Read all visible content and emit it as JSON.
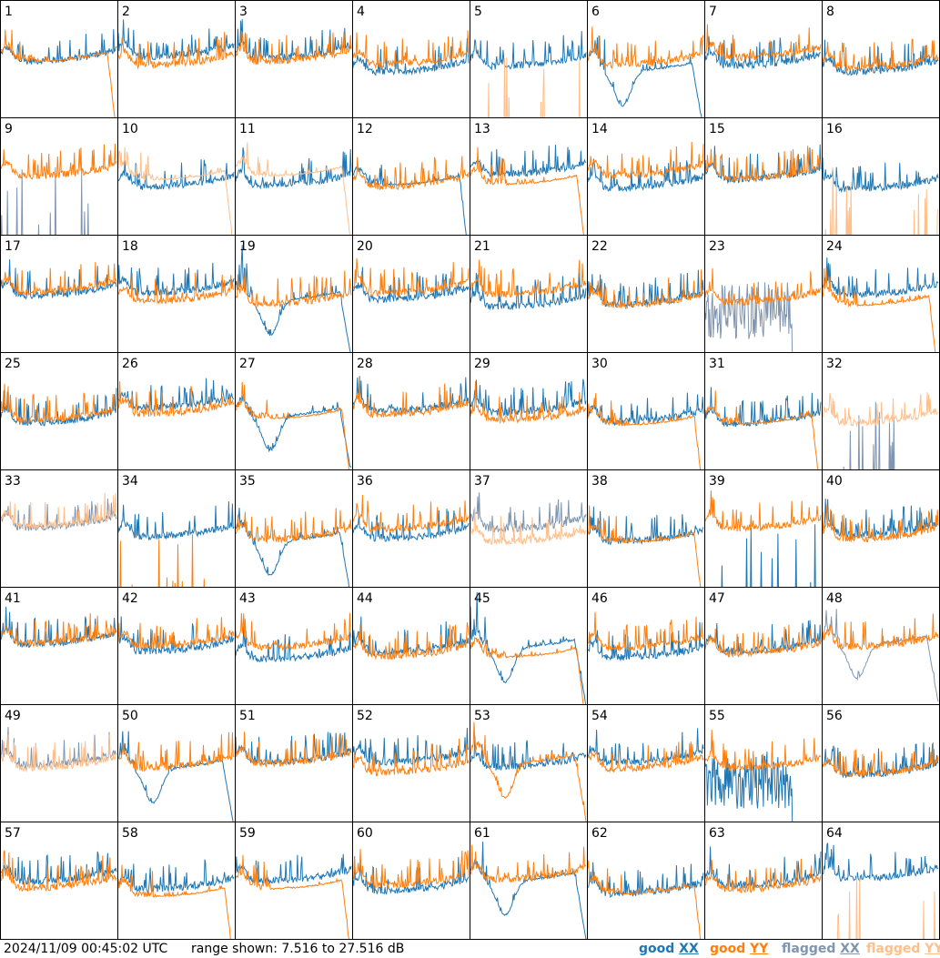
{
  "footer": {
    "timestamp": "2024/11/09 00:45:02 UTC",
    "range_text": "range shown: 7.516 to 27.516 dB"
  },
  "legend": [
    {
      "status": "good",
      "pol": "XX",
      "color": "#1f77b4"
    },
    {
      "status": "good",
      "pol": "YY",
      "color": "#ff7f0e"
    },
    {
      "status": "flagged",
      "pol": "XX",
      "color": "#8096b0"
    },
    {
      "status": "flagged",
      "pol": "YY",
      "color": "#ffbf8a"
    }
  ],
  "chart_data": {
    "type": "line",
    "grid": "8x8",
    "ylim": [
      7.516,
      27.516
    ],
    "yunit": "dB",
    "tiles": [
      {
        "label": "1",
        "xx": "good",
        "yy": "good",
        "xx_shape": "spiky",
        "yy_shape": "dropend"
      },
      {
        "label": "2",
        "xx": "good",
        "yy": "good",
        "xx_shape": "spiky",
        "yy_shape": "spiky"
      },
      {
        "label": "3",
        "xx": "good",
        "yy": "good",
        "xx_shape": "spiky",
        "yy_shape": "spiky"
      },
      {
        "label": "4",
        "xx": "good",
        "yy": "good",
        "xx_shape": "spiky",
        "yy_shape": "spiky"
      },
      {
        "label": "5",
        "xx": "good",
        "yy": "flagged",
        "xx_shape": "spiky",
        "yy_shape": "zero"
      },
      {
        "label": "6",
        "xx": "good",
        "yy": "good",
        "xx_shape": "dip",
        "yy_shape": "spiky"
      },
      {
        "label": "7",
        "xx": "good",
        "yy": "good",
        "xx_shape": "spiky",
        "yy_shape": "spiky"
      },
      {
        "label": "8",
        "xx": "good",
        "yy": "good",
        "xx_shape": "spiky",
        "yy_shape": "spiky"
      },
      {
        "label": "9",
        "xx": "flagged",
        "yy": "good",
        "xx_shape": "zero",
        "yy_shape": "spiky"
      },
      {
        "label": "10",
        "xx": "good",
        "yy": "flagged",
        "xx_shape": "spiky",
        "yy_shape": "dropend"
      },
      {
        "label": "11",
        "xx": "good",
        "yy": "flagged",
        "xx_shape": "spiky",
        "yy_shape": "dropend"
      },
      {
        "label": "12",
        "xx": "good",
        "yy": "good",
        "xx_shape": "dropend",
        "yy_shape": "spiky"
      },
      {
        "label": "13",
        "xx": "good",
        "yy": "good",
        "xx_shape": "spiky",
        "yy_shape": "dropend"
      },
      {
        "label": "14",
        "xx": "good",
        "yy": "good",
        "xx_shape": "spiky",
        "yy_shape": "spiky"
      },
      {
        "label": "15",
        "xx": "good",
        "yy": "good",
        "xx_shape": "spiky",
        "yy_shape": "spiky"
      },
      {
        "label": "16",
        "xx": "good",
        "yy": "flagged",
        "xx_shape": "spiky",
        "yy_shape": "zero"
      },
      {
        "label": "17",
        "xx": "good",
        "yy": "good",
        "xx_shape": "spiky",
        "yy_shape": "spiky"
      },
      {
        "label": "18",
        "xx": "good",
        "yy": "good",
        "xx_shape": "spiky",
        "yy_shape": "spiky"
      },
      {
        "label": "19",
        "xx": "good",
        "yy": "good",
        "xx_shape": "dip",
        "yy_shape": "spiky"
      },
      {
        "label": "20",
        "xx": "good",
        "yy": "good",
        "xx_shape": "spiky",
        "yy_shape": "spiky"
      },
      {
        "label": "21",
        "xx": "good",
        "yy": "good",
        "xx_shape": "spiky",
        "yy_shape": "spiky"
      },
      {
        "label": "22",
        "xx": "good",
        "yy": "good",
        "xx_shape": "spiky",
        "yy_shape": "spiky"
      },
      {
        "label": "23",
        "xx": "flagged",
        "yy": "good",
        "xx_shape": "noisylow",
        "yy_shape": "spiky"
      },
      {
        "label": "24",
        "xx": "good",
        "yy": "good",
        "xx_shape": "spiky",
        "yy_shape": "dropend"
      },
      {
        "label": "25",
        "xx": "good",
        "yy": "good",
        "xx_shape": "spiky",
        "yy_shape": "spiky"
      },
      {
        "label": "26",
        "xx": "good",
        "yy": "good",
        "xx_shape": "spiky",
        "yy_shape": "spiky"
      },
      {
        "label": "27",
        "xx": "good",
        "yy": "good",
        "xx_shape": "dip",
        "yy_shape": "dropend"
      },
      {
        "label": "28",
        "xx": "good",
        "yy": "good",
        "xx_shape": "spiky",
        "yy_shape": "spiky"
      },
      {
        "label": "29",
        "xx": "good",
        "yy": "good",
        "xx_shape": "spiky",
        "yy_shape": "spiky"
      },
      {
        "label": "30",
        "xx": "good",
        "yy": "good",
        "xx_shape": "spiky",
        "yy_shape": "dropend"
      },
      {
        "label": "31",
        "xx": "good",
        "yy": "good",
        "xx_shape": "spiky",
        "yy_shape": "dropend"
      },
      {
        "label": "32",
        "xx": "flagged",
        "yy": "flagged",
        "xx_shape": "zero",
        "yy_shape": "spiky"
      },
      {
        "label": "33",
        "xx": "flagged",
        "yy": "flagged",
        "xx_shape": "spiky",
        "yy_shape": "spiky"
      },
      {
        "label": "34",
        "xx": "good",
        "yy": "good",
        "xx_shape": "spiky",
        "yy_shape": "zero"
      },
      {
        "label": "35",
        "xx": "good",
        "yy": "good",
        "xx_shape": "dip",
        "yy_shape": "spiky"
      },
      {
        "label": "36",
        "xx": "good",
        "yy": "good",
        "xx_shape": "spiky",
        "yy_shape": "spiky"
      },
      {
        "label": "37",
        "xx": "flagged",
        "yy": "flagged",
        "xx_shape": "spiky",
        "yy_shape": "spiky"
      },
      {
        "label": "38",
        "xx": "good",
        "yy": "good",
        "xx_shape": "spiky",
        "yy_shape": "dropend"
      },
      {
        "label": "39",
        "xx": "good",
        "yy": "good",
        "xx_shape": "zero",
        "yy_shape": "spiky"
      },
      {
        "label": "40",
        "xx": "good",
        "yy": "good",
        "xx_shape": "spiky",
        "yy_shape": "spiky"
      },
      {
        "label": "41",
        "xx": "good",
        "yy": "good",
        "xx_shape": "spiky",
        "yy_shape": "spiky"
      },
      {
        "label": "42",
        "xx": "good",
        "yy": "good",
        "xx_shape": "spiky",
        "yy_shape": "spiky"
      },
      {
        "label": "43",
        "xx": "good",
        "yy": "good",
        "xx_shape": "spiky",
        "yy_shape": "spiky"
      },
      {
        "label": "44",
        "xx": "good",
        "yy": "good",
        "xx_shape": "spiky",
        "yy_shape": "spiky"
      },
      {
        "label": "45",
        "xx": "good",
        "yy": "good",
        "xx_shape": "dip",
        "yy_shape": "dropend"
      },
      {
        "label": "46",
        "xx": "good",
        "yy": "good",
        "xx_shape": "spiky",
        "yy_shape": "spiky"
      },
      {
        "label": "47",
        "xx": "good",
        "yy": "good",
        "xx_shape": "spiky",
        "yy_shape": "spiky"
      },
      {
        "label": "48",
        "xx": "flagged",
        "yy": "good",
        "xx_shape": "dip",
        "yy_shape": "spiky"
      },
      {
        "label": "49",
        "xx": "flagged",
        "yy": "flagged",
        "xx_shape": "spiky",
        "yy_shape": "spiky"
      },
      {
        "label": "50",
        "xx": "good",
        "yy": "good",
        "xx_shape": "dip",
        "yy_shape": "spiky"
      },
      {
        "label": "51",
        "xx": "good",
        "yy": "good",
        "xx_shape": "spiky",
        "yy_shape": "spiky"
      },
      {
        "label": "52",
        "xx": "good",
        "yy": "good",
        "xx_shape": "spiky",
        "yy_shape": "spiky"
      },
      {
        "label": "53",
        "xx": "good",
        "yy": "good",
        "xx_shape": "spiky",
        "yy_shape": "dip"
      },
      {
        "label": "54",
        "xx": "good",
        "yy": "good",
        "xx_shape": "spiky",
        "yy_shape": "spiky"
      },
      {
        "label": "55",
        "xx": "good",
        "yy": "good",
        "xx_shape": "noisylow",
        "yy_shape": "spiky"
      },
      {
        "label": "56",
        "xx": "good",
        "yy": "good",
        "xx_shape": "spiky",
        "yy_shape": "spiky"
      },
      {
        "label": "57",
        "xx": "good",
        "yy": "good",
        "xx_shape": "spiky",
        "yy_shape": "spiky"
      },
      {
        "label": "58",
        "xx": "good",
        "yy": "good",
        "xx_shape": "spiky",
        "yy_shape": "dropend"
      },
      {
        "label": "59",
        "xx": "good",
        "yy": "good",
        "xx_shape": "spiky",
        "yy_shape": "dropend"
      },
      {
        "label": "60",
        "xx": "good",
        "yy": "good",
        "xx_shape": "spiky",
        "yy_shape": "spiky"
      },
      {
        "label": "61",
        "xx": "good",
        "yy": "good",
        "xx_shape": "dip",
        "yy_shape": "spiky"
      },
      {
        "label": "62",
        "xx": "good",
        "yy": "good",
        "xx_shape": "spiky",
        "yy_shape": "dropend"
      },
      {
        "label": "63",
        "xx": "good",
        "yy": "good",
        "xx_shape": "spiky",
        "yy_shape": "spiky"
      },
      {
        "label": "64",
        "xx": "good",
        "yy": "flagged",
        "xx_shape": "spiky",
        "yy_shape": "zero"
      }
    ]
  }
}
